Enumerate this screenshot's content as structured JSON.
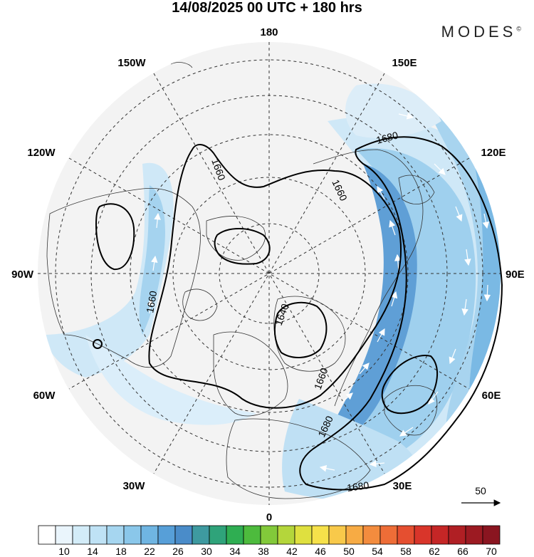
{
  "header": {
    "title": "14/08/2025  00 UTC  + 180 hrs",
    "logo_text": "MODES",
    "logo_mark": "©"
  },
  "map": {
    "longitude_labels": {
      "top": "180",
      "bottom": "0",
      "left": "90W",
      "right": "90E",
      "upper_left_1": "150W",
      "upper_left_2": "120W",
      "upper_right_1": "150E",
      "upper_right_2": "120E",
      "lower_left_1": "60W",
      "lower_left_2": "30W",
      "lower_right_1": "60E",
      "lower_right_2": "30E"
    },
    "contours": [
      {
        "label": "1660"
      },
      {
        "label": "1660"
      },
      {
        "label": "1660"
      },
      {
        "label": "1640"
      },
      {
        "label": "1660"
      },
      {
        "label": "1680"
      },
      {
        "label": "1680"
      },
      {
        "label": "1680"
      }
    ],
    "wind_reference_vector": "50"
  },
  "colorbar": {
    "tick_labels": [
      "10",
      "14",
      "18",
      "22",
      "26",
      "30",
      "34",
      "38",
      "42",
      "46",
      "50",
      "54",
      "58",
      "62",
      "66",
      "70"
    ],
    "colors": [
      "#ffffff",
      "#eaf5fc",
      "#d3ecf8",
      "#bfe2f5",
      "#a6d6f0",
      "#8ac7ea",
      "#6fb5e2",
      "#579fd8",
      "#4a8cc9",
      "#3e9aa0",
      "#2fa37a",
      "#2fae52",
      "#4dbb3d",
      "#82c93a",
      "#b4d63b",
      "#dfe03f",
      "#f6e14a",
      "#f8c94a",
      "#f7ab44",
      "#f38c3e",
      "#ee6d37",
      "#e54f30",
      "#d9352a",
      "#c52626",
      "#b01f24",
      "#9c1a22",
      "#8a1520"
    ]
  }
}
